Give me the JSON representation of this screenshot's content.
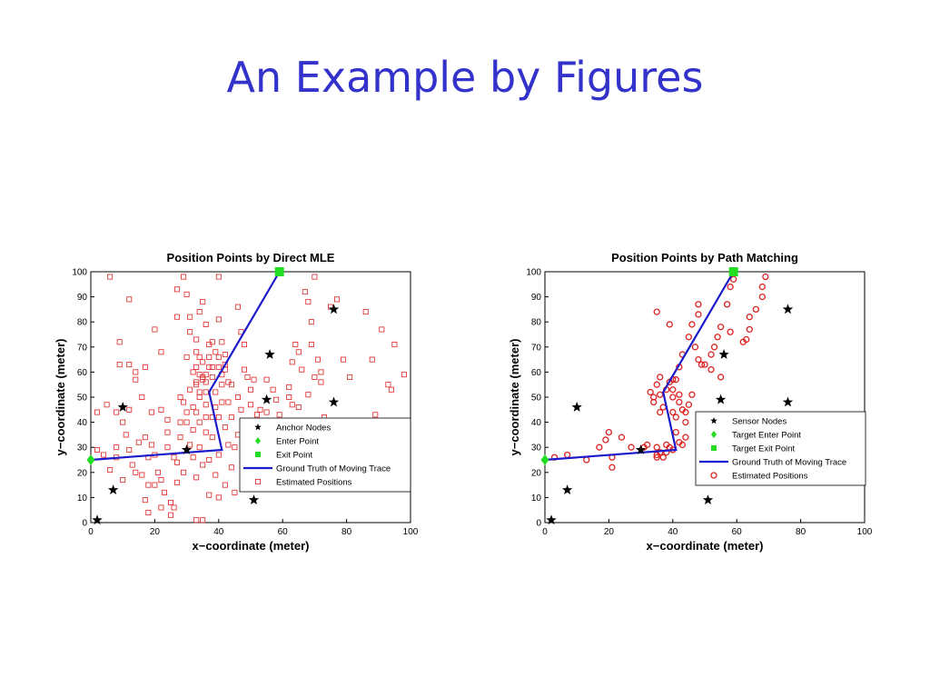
{
  "slide": {
    "title": "An Example by Figures"
  },
  "colors": {
    "title": "#3333cc",
    "trace": "#1a1acc",
    "estimate": "#dd2222",
    "enter": "#22dd22",
    "exit": "#22dd22",
    "anchor": "#000000"
  },
  "chart_data": [
    {
      "type": "scatter",
      "title": "Position Points by Direct MLE",
      "xlabel": "x−coordinate (meter)",
      "ylabel": "y−coordinate (meter)",
      "xlim": [
        0,
        100
      ],
      "ylim": [
        0,
        100
      ],
      "xticks": [
        0,
        20,
        40,
        60,
        80,
        100
      ],
      "yticks": [
        0,
        10,
        20,
        30,
        40,
        50,
        60,
        70,
        80,
        90,
        100
      ],
      "grid": false,
      "legend_position": "lower-right",
      "legend": [
        "Anchor Nodes",
        "Enter Point",
        "Exit Point",
        "Ground Truth of Moving Trace",
        "Estimated Positions"
      ],
      "anchor_nodes": [
        [
          2,
          1
        ],
        [
          7,
          13
        ],
        [
          10,
          46
        ],
        [
          30,
          29
        ],
        [
          51,
          9
        ],
        [
          55,
          49
        ],
        [
          56,
          67
        ],
        [
          76,
          48
        ],
        [
          76,
          85
        ]
      ],
      "enter_point": [
        0,
        25
      ],
      "exit_point": [
        59,
        100
      ],
      "ground_truth_trace": [
        [
          0,
          25
        ],
        [
          41,
          29
        ],
        [
          37,
          52
        ],
        [
          59,
          100
        ]
      ],
      "estimated_positions": [
        [
          6,
          98
        ],
        [
          5,
          47
        ],
        [
          2,
          44
        ],
        [
          8,
          44
        ],
        [
          9,
          72
        ],
        [
          9,
          63
        ],
        [
          12,
          89
        ],
        [
          12,
          63
        ],
        [
          14,
          57
        ],
        [
          17,
          62
        ],
        [
          19,
          44
        ],
        [
          17,
          34
        ],
        [
          20,
          77
        ],
        [
          22,
          68
        ],
        [
          24,
          41
        ],
        [
          27,
          93
        ],
        [
          29,
          98
        ],
        [
          27,
          82
        ],
        [
          30,
          91
        ],
        [
          31,
          82
        ],
        [
          31,
          76
        ],
        [
          33,
          73
        ],
        [
          33,
          68
        ],
        [
          34,
          84
        ],
        [
          35,
          88
        ],
        [
          36,
          79
        ],
        [
          37,
          71
        ],
        [
          38,
          72
        ],
        [
          40,
          98
        ],
        [
          40,
          81
        ],
        [
          40,
          66
        ],
        [
          41,
          59
        ],
        [
          42,
          67
        ],
        [
          43,
          56
        ],
        [
          42,
          63
        ],
        [
          44,
          55
        ],
        [
          46,
          86
        ],
        [
          47,
          76
        ],
        [
          48,
          71
        ],
        [
          48,
          61
        ],
        [
          49,
          58
        ],
        [
          50,
          53
        ],
        [
          52,
          43
        ],
        [
          53,
          45
        ],
        [
          55,
          57
        ],
        [
          57,
          53
        ],
        [
          58,
          40
        ],
        [
          62,
          54
        ],
        [
          63,
          64
        ],
        [
          64,
          71
        ],
        [
          65,
          68
        ],
        [
          66,
          61
        ],
        [
          67,
          92
        ],
        [
          68,
          88
        ],
        [
          69,
          80
        ],
        [
          69,
          71
        ],
        [
          70,
          98
        ],
        [
          71,
          65
        ],
        [
          72,
          56
        ],
        [
          73,
          42
        ],
        [
          75,
          86
        ],
        [
          77,
          89
        ],
        [
          79,
          65
        ],
        [
          81,
          58
        ],
        [
          86,
          84
        ],
        [
          88,
          65
        ],
        [
          89,
          43
        ],
        [
          91,
          77
        ],
        [
          93,
          55
        ],
        [
          94,
          53
        ],
        [
          95,
          71
        ],
        [
          98,
          59
        ],
        [
          2,
          29
        ],
        [
          4,
          27
        ],
        [
          6,
          21
        ],
        [
          8,
          26
        ],
        [
          10,
          17
        ],
        [
          11,
          35
        ],
        [
          12,
          29
        ],
        [
          13,
          23
        ],
        [
          14,
          20
        ],
        [
          16,
          19
        ],
        [
          17,
          9
        ],
        [
          18,
          15
        ],
        [
          19,
          31
        ],
        [
          20,
          27
        ],
        [
          21,
          20
        ],
        [
          22,
          17
        ],
        [
          23,
          12
        ],
        [
          24,
          30
        ],
        [
          25,
          8
        ],
        [
          26,
          6
        ],
        [
          27,
          16
        ],
        [
          27,
          24
        ],
        [
          28,
          34
        ],
        [
          29,
          20
        ],
        [
          30,
          40
        ],
        [
          31,
          31
        ],
        [
          32,
          37
        ],
        [
          32,
          26
        ],
        [
          33,
          18
        ],
        [
          33,
          44
        ],
        [
          34,
          52
        ],
        [
          34,
          30
        ],
        [
          35,
          23
        ],
        [
          35,
          58
        ],
        [
          36,
          47
        ],
        [
          36,
          36
        ],
        [
          37,
          11
        ],
        [
          37,
          25
        ],
        [
          38,
          34
        ],
        [
          38,
          42
        ],
        [
          38,
          62
        ],
        [
          39,
          19
        ],
        [
          39,
          46
        ],
        [
          40,
          10
        ],
        [
          40,
          27
        ],
        [
          41,
          55
        ],
        [
          42,
          38
        ],
        [
          42,
          15
        ],
        [
          43,
          31
        ],
        [
          43,
          48
        ],
        [
          44,
          22
        ],
        [
          44,
          42
        ],
        [
          45,
          30
        ],
        [
          45,
          12
        ],
        [
          46,
          50
        ],
        [
          46,
          35
        ],
        [
          47,
          45
        ],
        [
          48,
          27
        ],
        [
          48,
          39
        ],
        [
          49,
          33
        ],
        [
          50,
          19
        ],
        [
          50,
          47
        ],
        [
          51,
          57
        ],
        [
          51,
          28
        ],
        [
          52,
          38
        ],
        [
          53,
          23
        ],
        [
          54,
          32
        ],
        [
          55,
          44
        ],
        [
          56,
          26
        ],
        [
          56,
          36
        ],
        [
          57,
          19
        ],
        [
          58,
          31
        ],
        [
          58,
          49
        ],
        [
          59,
          43
        ],
        [
          60,
          28
        ],
        [
          61,
          37
        ],
        [
          62,
          50
        ],
        [
          63,
          47
        ],
        [
          64,
          25
        ],
        [
          65,
          46
        ],
        [
          67,
          27
        ],
        [
          68,
          51
        ],
        [
          70,
          58
        ],
        [
          72,
          60
        ],
        [
          32,
          60
        ],
        [
          30,
          66
        ],
        [
          33,
          55
        ],
        [
          34,
          50
        ],
        [
          36,
          56
        ],
        [
          35,
          64
        ],
        [
          37,
          62
        ],
        [
          31,
          53
        ],
        [
          29,
          48
        ],
        [
          32,
          46
        ],
        [
          34,
          40
        ],
        [
          28,
          50
        ],
        [
          30,
          44
        ],
        [
          36,
          42
        ],
        [
          33,
          62
        ],
        [
          35,
          57
        ],
        [
          41,
          48
        ],
        [
          40,
          42
        ],
        [
          39,
          52
        ],
        [
          38,
          58
        ],
        [
          36,
          59
        ],
        [
          34,
          66
        ],
        [
          37,
          66
        ],
        [
          41,
          72
        ],
        [
          42,
          61
        ],
        [
          39,
          68
        ],
        [
          40,
          62
        ],
        [
          36,
          52
        ],
        [
          34,
          59
        ],
        [
          33,
          56
        ],
        [
          35,
          1
        ],
        [
          33,
          1
        ],
        [
          25,
          3
        ],
        [
          22,
          6
        ],
        [
          18,
          4
        ],
        [
          15,
          32
        ],
        [
          28,
          40
        ],
        [
          26,
          26
        ],
        [
          24,
          36
        ],
        [
          22,
          45
        ],
        [
          20,
          15
        ],
        [
          18,
          26
        ],
        [
          12,
          45
        ],
        [
          14,
          60
        ],
        [
          16,
          50
        ],
        [
          10,
          40
        ],
        [
          8,
          30
        ]
      ]
    },
    {
      "type": "scatter",
      "title": "Position Points by Path Matching",
      "xlabel": "x−coordinate (meter)",
      "ylabel": "y−coordinate (meter)",
      "xlim": [
        0,
        100
      ],
      "ylim": [
        0,
        100
      ],
      "xticks": [
        0,
        20,
        40,
        60,
        80,
        100
      ],
      "yticks": [
        0,
        10,
        20,
        30,
        40,
        50,
        60,
        70,
        80,
        90,
        100
      ],
      "grid": false,
      "legend_position": "lower-right",
      "legend": [
        "Sensor Nodes",
        "Target Enter Point",
        "Target Exit Point",
        "Ground Truth of Moving Trace",
        "Estimated Positions"
      ],
      "anchor_nodes": [
        [
          2,
          1
        ],
        [
          7,
          13
        ],
        [
          10,
          46
        ],
        [
          30,
          29
        ],
        [
          51,
          9
        ],
        [
          55,
          49
        ],
        [
          56,
          67
        ],
        [
          76,
          48
        ],
        [
          76,
          85
        ]
      ],
      "enter_point": [
        0,
        25
      ],
      "exit_point": [
        59,
        100
      ],
      "ground_truth_trace": [
        [
          0,
          25
        ],
        [
          41,
          29
        ],
        [
          37,
          52
        ],
        [
          59,
          100
        ]
      ],
      "estimated_positions": [
        [
          3,
          26
        ],
        [
          7,
          27
        ],
        [
          13,
          25
        ],
        [
          17,
          30
        ],
        [
          19,
          33
        ],
        [
          20,
          36
        ],
        [
          21,
          22
        ],
        [
          21,
          26
        ],
        [
          24,
          34
        ],
        [
          27,
          30
        ],
        [
          31,
          30
        ],
        [
          32,
          31
        ],
        [
          35,
          30
        ],
        [
          35,
          27
        ],
        [
          35,
          26
        ],
        [
          36,
          28
        ],
        [
          37,
          26
        ],
        [
          38,
          28
        ],
        [
          38,
          31
        ],
        [
          39,
          30
        ],
        [
          40,
          29
        ],
        [
          42,
          32
        ],
        [
          43,
          31
        ],
        [
          44,
          34
        ],
        [
          44,
          40
        ],
        [
          41,
          36
        ],
        [
          41,
          42
        ],
        [
          42,
          48
        ],
        [
          40,
          50
        ],
        [
          38,
          53
        ],
        [
          39,
          56
        ],
        [
          40,
          53
        ],
        [
          42,
          51
        ],
        [
          41,
          57
        ],
        [
          42,
          62
        ],
        [
          43,
          67
        ],
        [
          45,
          74
        ],
        [
          46,
          79
        ],
        [
          48,
          87
        ],
        [
          48,
          83
        ],
        [
          47,
          70
        ],
        [
          48,
          65
        ],
        [
          50,
          63
        ],
        [
          52,
          67
        ],
        [
          54,
          74
        ],
        [
          55,
          78
        ],
        [
          57,
          87
        ],
        [
          58,
          94
        ],
        [
          59,
          97
        ],
        [
          36,
          58
        ],
        [
          35,
          55
        ],
        [
          34,
          50
        ],
        [
          34,
          48
        ],
        [
          33,
          52
        ],
        [
          36,
          44
        ],
        [
          40,
          44
        ],
        [
          44,
          44
        ],
        [
          49,
          63
        ],
        [
          52,
          61
        ],
        [
          53,
          70
        ],
        [
          55,
          58
        ],
        [
          58,
          76
        ],
        [
          62,
          72
        ],
        [
          64,
          77
        ],
        [
          66,
          85
        ],
        [
          68,
          90
        ],
        [
          68,
          94
        ],
        [
          69,
          98
        ],
        [
          64,
          82
        ],
        [
          63,
          73
        ],
        [
          35,
          84
        ],
        [
          39,
          79
        ],
        [
          36,
          51
        ],
        [
          37,
          46
        ],
        [
          43,
          45
        ],
        [
          45,
          47
        ],
        [
          40,
          57
        ],
        [
          46,
          51
        ]
      ]
    }
  ]
}
